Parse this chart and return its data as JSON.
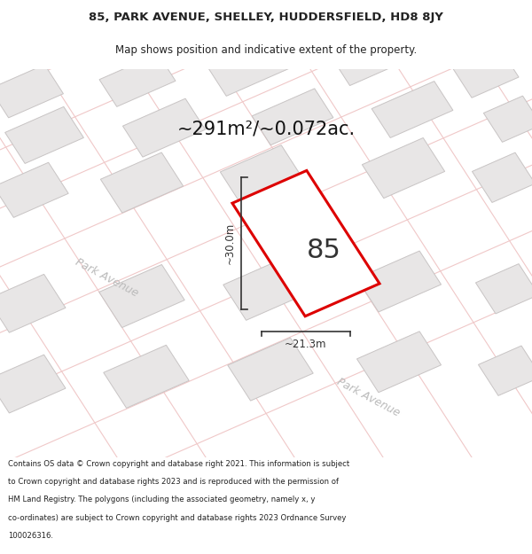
{
  "title_line1": "85, PARK AVENUE, SHELLEY, HUDDERSFIELD, HD8 8JY",
  "title_line2": "Map shows position and indicative extent of the property.",
  "area_text": "~291m²/~0.072ac.",
  "label_85": "85",
  "dim_height": "~30.0m",
  "dim_width": "~21.3m",
  "road_label1": "Park Avenue",
  "road_label2": "Park Avenue",
  "footer": "Contains OS data © Crown copyright and database right 2021. This information is subject to Crown copyright and database rights 2023 and is reproduced with the permission of HM Land Registry. The polygons (including the associated geometry, namely x, y co-ordinates) are subject to Crown copyright and database rights 2023 Ordnance Survey 100026316.",
  "map_bg": "#f2f0f0",
  "building_fill": "#e8e6e6",
  "building_stroke": "#c8c4c4",
  "road_line_color": "#f0c8c8",
  "subject_fill": "#ffffff",
  "subject_stroke": "#dd0000",
  "dim_line_color": "#333333",
  "title_color": "#222222",
  "footer_color": "#222222",
  "road_label_color": "#bbbbbb",
  "area_text_color": "#111111"
}
